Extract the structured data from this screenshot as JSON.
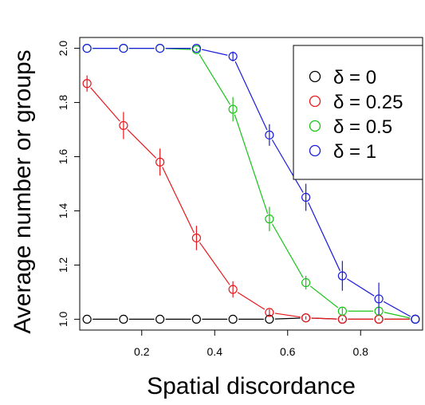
{
  "chart_data": {
    "type": "line",
    "xlabel": "Spatial discordance",
    "ylabel": "Average number or groups",
    "xlim": [
      0.03,
      0.97
    ],
    "ylim": [
      0.96,
      2.04
    ],
    "x_ticks": [
      0.2,
      0.4,
      0.6,
      0.8
    ],
    "x_tick_labels": [
      "0.2",
      "0.4",
      "0.6",
      "0.8"
    ],
    "y_ticks": [
      1.0,
      1.2,
      1.4,
      1.6,
      1.8,
      2.0
    ],
    "y_tick_labels": [
      "1.0",
      "1.2",
      "1.4",
      "1.6",
      "1.8",
      "2.0"
    ],
    "legend_position": "top-right",
    "x": [
      0.05,
      0.15,
      0.25,
      0.35,
      0.45,
      0.55,
      0.65,
      0.75,
      0.85,
      0.95
    ],
    "series": [
      {
        "name": "δ = 0",
        "color": "#000000",
        "values": [
          1.0,
          1.0,
          1.0,
          1.0,
          1.0,
          1.0,
          1.005,
          1.0,
          1.0,
          1.0
        ],
        "err": [
          0,
          0,
          0,
          0,
          0,
          0,
          0,
          0,
          0,
          0
        ]
      },
      {
        "name": "δ = 0.25",
        "color": "#e8181c",
        "values": [
          1.87,
          1.715,
          1.58,
          1.3,
          1.11,
          1.025,
          1.005,
          1.0,
          1.0,
          1.0
        ],
        "err": [
          0.03,
          0.05,
          0.05,
          0.045,
          0.03,
          0.012,
          0.006,
          0.004,
          0.003,
          0
        ]
      },
      {
        "name": "δ = 0.5",
        "color": "#16c416",
        "values": [
          2.0,
          2.0,
          2.0,
          1.995,
          1.775,
          1.37,
          1.135,
          1.03,
          1.03,
          1.0
        ],
        "err": [
          0,
          0,
          0,
          0.005,
          0.045,
          0.045,
          0.025,
          0.012,
          0.012,
          0
        ]
      },
      {
        "name": "δ = 1",
        "color": "#1a1ae0",
        "values": [
          2.0,
          2.0,
          2.0,
          2.0,
          1.97,
          1.68,
          1.45,
          1.16,
          1.075,
          1.0
        ],
        "err": [
          0,
          0,
          0,
          0,
          0.018,
          0.04,
          0.05,
          0.055,
          0.06,
          0
        ]
      }
    ],
    "legend": {
      "symbol": "δ",
      "eq": "=",
      "labels": [
        "0",
        "0.25",
        "0.5",
        "1"
      ]
    }
  }
}
